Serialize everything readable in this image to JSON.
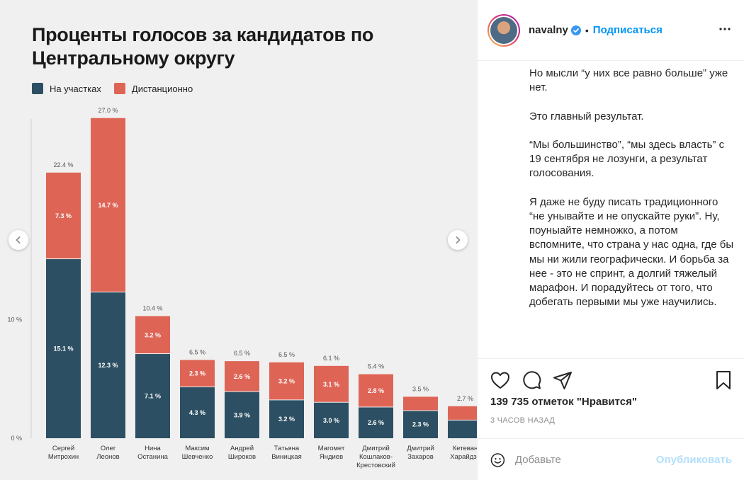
{
  "post": {
    "author": "navalny",
    "follow_label": "Подписаться",
    "separator": "•",
    "caption_paragraphs": [
      "Но мысли “у них все равно больше” уже нет.",
      "Это главный результат.",
      "“Мы большинство”, “мы здесь власть” с 19 сентября не лозунги, а результат голосования.",
      "Я даже не буду писать традиционного “не унывайте и не опускайте руки”. Ну, поуныайте немножко, а потом вспомните, что страна у нас одна, где бы мы ни жили географически. И борьба за нее - это не спринт, а долгий тяжелый марафон. И порадуйтесь от того, что добегать первыми мы уже научились."
    ],
    "likes_text": "139 735 отметок \"Нравится\"",
    "timestamp": "3 часов назад",
    "comment_placeholder": "Добавьте",
    "publish_label": "Опубликовать",
    "icons": {
      "verified": "verified-badge-icon",
      "more": "more-options-icon",
      "like": "heart-icon",
      "comment": "comment-icon",
      "share": "share-icon",
      "save": "bookmark-icon",
      "emoji": "emoji-icon",
      "prev": "chevron-left-icon",
      "next": "chevron-right-icon"
    },
    "colors": {
      "link": "#0095f6",
      "text": "#262626",
      "muted": "#8e8e8e",
      "publish_disabled": "#b2dffc"
    }
  },
  "chart_data": {
    "type": "bar",
    "stacked": true,
    "title": "Проценты голосов за кандидатов по Центральному округу",
    "categories": [
      [
        "Сергей",
        "Митрохин"
      ],
      [
        "Олег",
        "Леонов"
      ],
      [
        "Нина",
        "Останина"
      ],
      [
        "Максим",
        "Шевченко"
      ],
      [
        "Андрей",
        "Широков"
      ],
      [
        "Татьяна",
        "Виницкая"
      ],
      [
        "Магомет",
        "Яндиев"
      ],
      [
        "Дмитрий",
        "Кошлаков-",
        "Крестовский"
      ],
      [
        "Дмитрий",
        "Захаров"
      ],
      [
        "Кетеван",
        "Харайдзе"
      ]
    ],
    "series": [
      {
        "name": "На участках",
        "color": "#2c4f63",
        "values": [
          15.1,
          12.3,
          7.1,
          4.3,
          3.9,
          3.2,
          3.0,
          2.6,
          2.3,
          1.5
        ],
        "labels": [
          "15.1 %",
          "12.3 %",
          "7.1 %",
          "4.3 %",
          "3.9 %",
          "3.2 %",
          "3.0 %",
          "2.6 %",
          "2.3 %",
          ""
        ]
      },
      {
        "name": "Дистанционно",
        "color": "#de6556",
        "values": [
          7.3,
          14.7,
          3.2,
          2.3,
          2.6,
          3.2,
          3.1,
          2.8,
          1.2,
          1.2
        ],
        "labels": [
          "7.3 %",
          "14.7 %",
          "3.2 %",
          "2.3 %",
          "2.6 %",
          "3.2 %",
          "3.1 %",
          "2.8 %",
          "",
          ""
        ]
      }
    ],
    "totals": [
      "22.4 %",
      "27.0 %",
      "10.4 %",
      "6.5 %",
      "6.5 %",
      "6.5 %",
      "6.1 %",
      "5.4 %",
      "3.5 %",
      "2.7 %"
    ],
    "y_ticks": [
      {
        "value": 0,
        "label": "0 %"
      },
      {
        "value": 10,
        "label": "10 %"
      }
    ],
    "ylim": [
      0,
      27
    ],
    "grid": false
  }
}
